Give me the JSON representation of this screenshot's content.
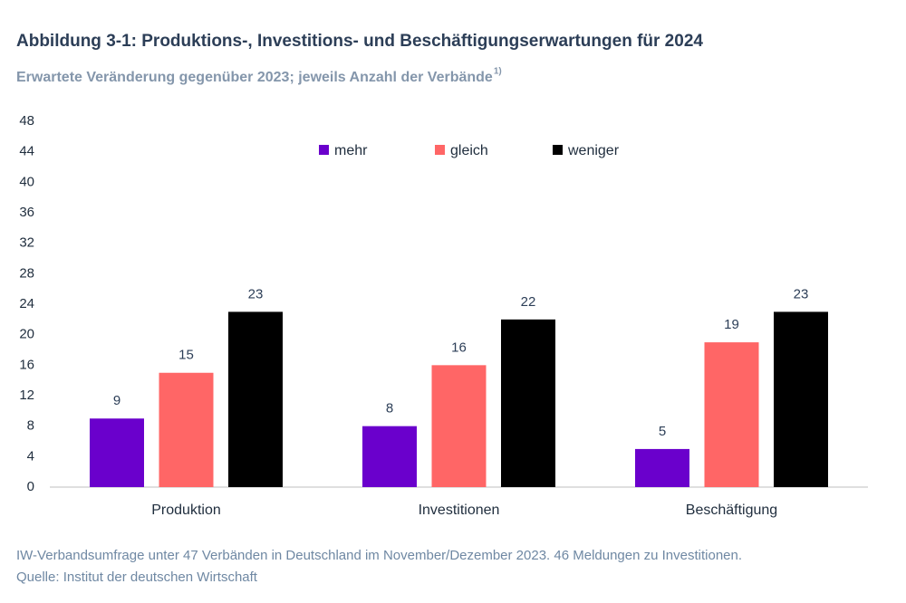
{
  "chart_data": {
    "type": "bar",
    "title": "Abbildung 3-1: Produktions-, Investitions- und Beschäftigungserwartungen für 2024",
    "subtitle": "Erwartete Veränderung gegenüber 2023; jeweils Anzahl der Verbände",
    "subtitle_superscript": "1)",
    "categories": [
      "Produktion",
      "Investitionen",
      "Beschäftigung"
    ],
    "series": [
      {
        "name": "mehr",
        "color": "#6a00cc",
        "values": [
          9,
          8,
          5
        ]
      },
      {
        "name": "gleich",
        "color": "#ff6666",
        "values": [
          15,
          16,
          19
        ]
      },
      {
        "name": "weniger",
        "color": "#000000",
        "values": [
          23,
          22,
          23
        ]
      }
    ],
    "ylim": [
      0,
      48
    ],
    "yticks": [
      0,
      4,
      8,
      12,
      16,
      20,
      24,
      28,
      32,
      36,
      40,
      44,
      48
    ],
    "grid": false,
    "legend": "top",
    "footnote": "IW-Verbandsumfrage unter 47 Verbänden in Deutschland im November/Dezember 2023. 46 Meldungen zu Investitionen.",
    "source": "Quelle: Institut der deutschen Wirtschaft"
  }
}
